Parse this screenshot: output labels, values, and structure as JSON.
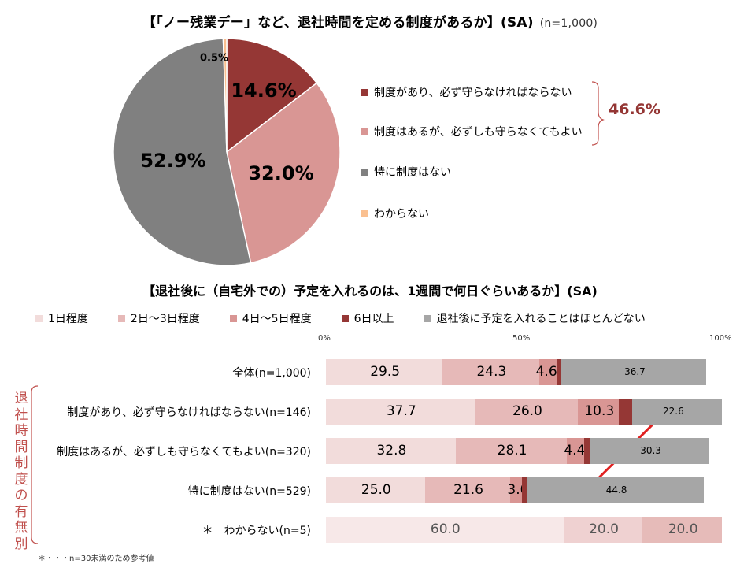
{
  "title1": "【「ノー残業デー」など、退社時間を定める制度があるか】(SA)",
  "title1_n": "(n=1,000)",
  "pie_legend": [
    {
      "label": "制度があり、必ず守らなければならない",
      "color": "#953735"
    },
    {
      "label": "制度はあるが、必ずしも守らなくてもよい",
      "color": "#d99694"
    },
    {
      "label": "特に制度はない",
      "color": "#808080"
    },
    {
      "label": "わからない",
      "color": "#fac090"
    }
  ],
  "bracket_total": "46.6%",
  "title2": "【退社後に（自宅外での）予定を入れるのは、1週間で何日ぐらいあるか】(SA)",
  "bar_legend": [
    {
      "label": "1日程度",
      "color": "#f2dcdb"
    },
    {
      "label": "2日～3日程度",
      "color": "#e6b9b8"
    },
    {
      "label": "4日～5日程度",
      "color": "#d99694"
    },
    {
      "label": "6日以上",
      "color": "#953735"
    },
    {
      "label": "退社後に予定を入れることはほとんどない",
      "color": "#a6a6a6"
    }
  ],
  "axis_ticks": [
    "0%",
    "50%",
    "100%"
  ],
  "side_label": "退社時間制度の有無別",
  "footnote": "＊・・・n=30未満のため参考値",
  "chart_data": [
    {
      "type": "pie",
      "title": "【「ノー残業デー」など、退社時間を定める制度があるか】(SA)",
      "categories": [
        "制度があり、必ず守らなければならない",
        "制度はあるが、必ずしも守らなくてもよい",
        "特に制度はない",
        "わからない"
      ],
      "values": [
        14.6,
        32.0,
        52.9,
        0.5
      ],
      "value_labels": [
        "14.6%",
        "32.0%",
        "52.9%",
        "0.5%"
      ],
      "colors": [
        "#953735",
        "#d99694",
        "#808080",
        "#fac090"
      ],
      "legend": "right"
    },
    {
      "type": "bar",
      "orientation": "horizontal-stacked-100",
      "title": "【退社後に（自宅外での）予定を入れるのは、1週間で何日ぐらいあるか】(SA)",
      "categories": [
        "全体(n=1,000)",
        "制度があり、必ず守らなければならない(n=146)",
        "制度はあるが、必ずしも守らなくてもよい(n=320)",
        "特に制度はない(n=529)",
        "＊　わからない(n=5)"
      ],
      "series": [
        {
          "name": "1日程度",
          "values": [
            29.5,
            37.7,
            32.8,
            25.0,
            60.0
          ],
          "labels": [
            "29.5",
            "37.7",
            "32.8",
            "25.0",
            "60.0"
          ]
        },
        {
          "name": "2日～3日程度",
          "values": [
            24.3,
            26.0,
            28.1,
            21.6,
            20.0
          ],
          "labels": [
            "24.3",
            "26.0",
            "28.1",
            "21.6",
            "20.0"
          ]
        },
        {
          "name": "4日～5日程度",
          "values": [
            4.6,
            10.3,
            4.4,
            3.0,
            20.0
          ],
          "labels": [
            "4.6",
            "10.3",
            "4.4",
            "3.0",
            "20.0"
          ]
        },
        {
          "name": "6日以上",
          "values": [
            1.0,
            3.4,
            1.3,
            1.1,
            0
          ],
          "labels": [
            "1.0",
            "",
            "1.3",
            "1.1",
            ""
          ]
        },
        {
          "name": "退社後に予定を入れることはほとんどない",
          "values": [
            36.7,
            22.6,
            30.3,
            44.8,
            0
          ],
          "labels": [
            "36.7",
            "22.6",
            "30.3",
            "44.8",
            ""
          ]
        }
      ],
      "xlim": [
        0,
        100
      ],
      "legend": "top"
    }
  ]
}
